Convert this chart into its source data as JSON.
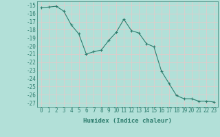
{
  "x": [
    0,
    1,
    2,
    3,
    4,
    5,
    6,
    7,
    8,
    9,
    10,
    11,
    12,
    13,
    14,
    15,
    16,
    17,
    18,
    19,
    20,
    21,
    22,
    23
  ],
  "y": [
    -15.3,
    -15.2,
    -15.1,
    -15.7,
    -17.4,
    -18.5,
    -21.0,
    -20.7,
    -20.5,
    -19.3,
    -18.3,
    -16.7,
    -18.1,
    -18.4,
    -19.7,
    -20.1,
    -23.1,
    -24.6,
    -26.1,
    -26.5,
    -26.5,
    -26.8,
    -26.8,
    -26.9
  ],
  "line_color": "#2e7d6e",
  "bg_color": "#b2e0d8",
  "grid_color": "#e8c8c8",
  "xlabel": "Humidex (Indice chaleur)",
  "ylim": [
    -27.5,
    -14.5
  ],
  "xlim": [
    -0.5,
    23.5
  ],
  "yticks": [
    -15,
    -16,
    -17,
    -18,
    -19,
    -20,
    -21,
    -22,
    -23,
    -24,
    -25,
    -26,
    -27
  ],
  "xticks": [
    0,
    1,
    2,
    3,
    4,
    5,
    6,
    7,
    8,
    9,
    10,
    11,
    12,
    13,
    14,
    15,
    16,
    17,
    18,
    19,
    20,
    21,
    22,
    23
  ],
  "tick_fontsize": 5.5,
  "xlabel_fontsize": 6.5
}
